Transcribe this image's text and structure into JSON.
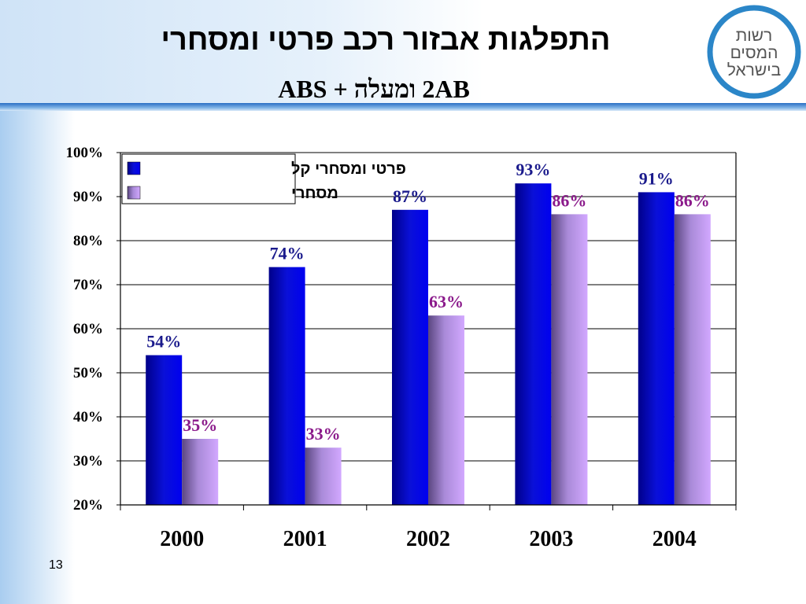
{
  "slide": {
    "title": "התפלגות אבזור רכב פרטי ומסחרי",
    "subtitle": "2AB ומעלה + ABS",
    "page_number": "13"
  },
  "logo": {
    "lines": [
      "רשות",
      "המסים",
      "בישראל"
    ],
    "color": "#2b86c8"
  },
  "colors": {
    "series1": "#0a10d8",
    "series2": "#c79bf2",
    "label1": "#1a1a8c",
    "label2": "#8b1a8b"
  },
  "chart_data": {
    "type": "bar",
    "categories": [
      "2000",
      "2001",
      "2002",
      "2003",
      "2004"
    ],
    "series": [
      {
        "name": "פרטי ומסחרי קל",
        "values": [
          54,
          74,
          87,
          93,
          91
        ],
        "labels": [
          "54%",
          "74%",
          "87%",
          "93%",
          "91%"
        ]
      },
      {
        "name": "מסחרי",
        "values": [
          35,
          33,
          63,
          86,
          86
        ],
        "labels": [
          "35%",
          "33%",
          "63%",
          "86%",
          "86%"
        ]
      }
    ],
    "ylim": [
      20,
      100
    ],
    "yticks": [
      "20%",
      "30%",
      "40%",
      "50%",
      "60%",
      "70%",
      "80%",
      "90%",
      "100%"
    ],
    "ytick_values": [
      20,
      30,
      40,
      50,
      60,
      70,
      80,
      90,
      100
    ],
    "grid": true,
    "legend_position": "top-left"
  }
}
